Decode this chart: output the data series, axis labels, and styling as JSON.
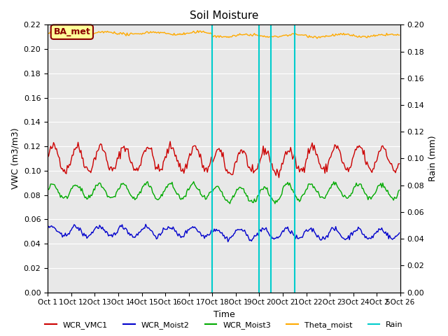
{
  "title": "Soil Moisture",
  "xlabel": "Time",
  "ylabel_left": "VWC (m3/m3)",
  "ylabel_right": "Rain (mm)",
  "ylim_left": [
    0.0,
    0.22
  ],
  "ylim_right": [
    0.0,
    0.2
  ],
  "n_points": 360,
  "background_color": "#e8e8e8",
  "xtick_positions": [
    0,
    24,
    48,
    72,
    96,
    120,
    144,
    168,
    192,
    216,
    240,
    264,
    288,
    312,
    336,
    360
  ],
  "xtick_labels": [
    "Oct 1",
    "1Oct 1",
    "2Oct 1",
    "3Oct 1",
    "4Oct 1",
    "5Oct 1",
    "6Oct 1",
    "7Oct 1",
    "8Oct 1",
    "9Oct 2",
    "0Oct 2",
    "1Oct 2",
    "2Oct 2",
    "3Oct 2",
    "4Oct 2",
    "5Oct 26"
  ],
  "yticks_left": [
    0.0,
    0.02,
    0.04,
    0.06,
    0.08,
    0.1,
    0.12,
    0.14,
    0.16,
    0.18,
    0.2,
    0.22
  ],
  "yticks_right": [
    0.0,
    0.02,
    0.04,
    0.06,
    0.08,
    0.1,
    0.12,
    0.14,
    0.16,
    0.18,
    0.2
  ],
  "rain_lines": [
    168,
    216,
    228,
    252
  ],
  "legend_labels": [
    "WCR_VMC1",
    "WCR_Moist2",
    "WCR_Moist3",
    "Theta_moist",
    "Rain"
  ],
  "colors": {
    "WCR_VMC1": "#cc0000",
    "WCR_Moist2": "#0000cc",
    "WCR_Moist3": "#00aa00",
    "Theta_moist": "#ffaa00",
    "Rain": "#00cccc"
  },
  "annotation_label": "BA_met",
  "annotation_color": "#8b0000",
  "annotation_bg": "#ffff99"
}
